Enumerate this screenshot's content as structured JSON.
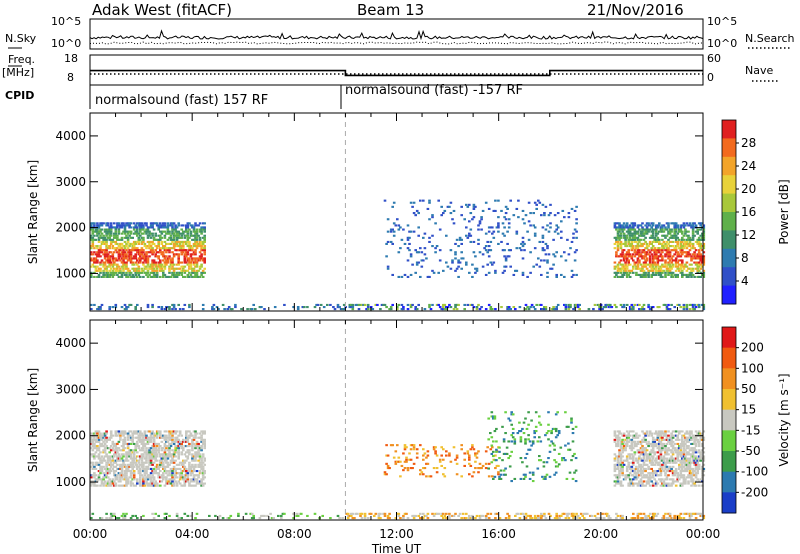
{
  "header": {
    "station": "Adak West (fitACF)",
    "beam": "Beam 13",
    "date": "21/Nov/2016"
  },
  "side_labels": {
    "nsky": "N.Sky",
    "freq_line1": "Freq.",
    "freq_line2": "[MHz]",
    "cpid": "CPID",
    "nsearch": "N.Search",
    "nave": "Nave"
  },
  "cpid_labels": [
    "normalsound (fast) 157 RF",
    "normalsound (fast) -157 RF"
  ],
  "colors": {
    "frame": "#000000",
    "marker": "#aaaaaa"
  },
  "chart_data": [
    {
      "type": "line",
      "title": "",
      "panel": "noise",
      "left_axis": {
        "label": "N.Sky",
        "ticks": [
          "10^5",
          "10^0"
        ]
      },
      "right_axis": {
        "label": "N.Search",
        "ticks": [
          "10^5",
          "10^0"
        ]
      }
    },
    {
      "type": "line",
      "panel": "frequency / nave",
      "left_axis": {
        "label": "Freq. [MHz]",
        "ticks": [
          18,
          8
        ]
      },
      "right_axis": {
        "label": "Nave",
        "ticks": [
          60,
          0
        ]
      },
      "series": [
        {
          "name": "Freq.",
          "x": [
            "00:00",
            "10:00",
            "10:00",
            "18:00",
            "18:00",
            "24:00"
          ],
          "values": [
            12.8,
            12.8,
            11.2,
            11.2,
            12.8,
            12.8
          ]
        }
      ]
    },
    {
      "type": "heatmap",
      "panel": "power",
      "xlabel": "Time UT",
      "ylabel": "Slant Range [km]",
      "xlim": [
        "00:00",
        "24:00"
      ],
      "x_ticks": [
        "00:00",
        "04:00",
        "08:00",
        "12:00",
        "16:00",
        "20:00",
        "00:00"
      ],
      "ylim": [
        180,
        4500
      ],
      "y_ticks": [
        1000,
        2000,
        3000,
        4000
      ],
      "colorbar": {
        "label": "Power [dB]",
        "ticks": [
          4,
          8,
          12,
          16,
          20,
          24,
          28
        ],
        "colors": [
          "#2020ff",
          "#3050c8",
          "#2e7bb0",
          "#3f8f6a",
          "#5fb04a",
          "#a8c83a",
          "#e8d23a",
          "#f2a42a",
          "#f26a1e",
          "#e02020"
        ]
      }
    },
    {
      "type": "heatmap",
      "panel": "velocity",
      "xlabel": "Time UT",
      "ylabel": "Slant Range [km]",
      "xlim": [
        "00:00",
        "24:00"
      ],
      "x_ticks": [
        "00:00",
        "04:00",
        "08:00",
        "12:00",
        "16:00",
        "20:00",
        "00:00"
      ],
      "ylim": [
        180,
        4500
      ],
      "y_ticks": [
        1000,
        2000,
        3000,
        4000
      ],
      "colorbar": {
        "label": "Velocity [m s⁻¹]",
        "ticks": [
          200,
          100,
          50,
          15,
          -15,
          -50,
          -100,
          -200
        ],
        "colors": [
          "#1a3ec8",
          "#2c7ab0",
          "#3c9c4a",
          "#6ad040",
          "#c8c8c0",
          "#f0c030",
          "#f09020",
          "#f05a10",
          "#e01818"
        ]
      }
    }
  ],
  "x_axis": {
    "label": "Time UT",
    "ticks": [
      "00:00",
      "04:00",
      "08:00",
      "12:00",
      "16:00",
      "20:00",
      "00:00"
    ]
  }
}
